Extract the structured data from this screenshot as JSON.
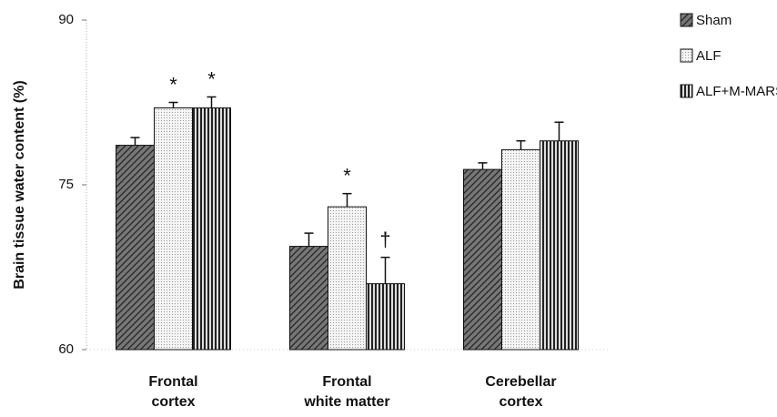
{
  "chart_data": {
    "type": "bar",
    "ylabel": "Brain tissue water content (%)",
    "categories": [
      [
        "Frontal",
        "cortex"
      ],
      [
        "Frontal",
        "white matter"
      ],
      [
        "Cerebellar",
        "cortex"
      ]
    ],
    "series": [
      {
        "name": "Sham",
        "color": "#3a3a3a",
        "pattern": "hatch",
        "values": [
          78.6,
          69.4,
          76.4
        ],
        "errors": [
          0.7,
          1.2,
          0.6
        ],
        "markers": [
          null,
          null,
          null
        ]
      },
      {
        "name": "ALF",
        "color": "#f2f2f2",
        "pattern": "dots",
        "values": [
          82.0,
          73.0,
          78.2
        ],
        "errors": [
          0.5,
          1.2,
          0.8
        ],
        "markers": [
          "*",
          "*",
          null
        ]
      },
      {
        "name": "ALF+M-MARS",
        "color": "#2a2a2a",
        "pattern": "vstripes",
        "values": [
          82.0,
          66.0,
          79.0
        ],
        "errors": [
          1.0,
          2.4,
          1.7
        ],
        "markers": [
          "*",
          "†",
          null
        ]
      }
    ],
    "ylim": [
      60,
      90
    ],
    "yticks": [
      60,
      75,
      90
    ],
    "legend": "upper right"
  }
}
